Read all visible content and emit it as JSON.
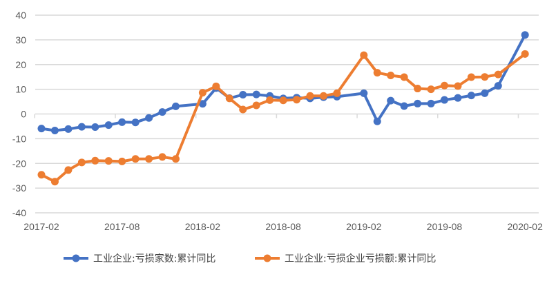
{
  "chart_data": {
    "type": "line",
    "title": "",
    "xlabel": "",
    "ylabel": "",
    "ylim": [
      -40,
      40
    ],
    "yticks": [
      40,
      30,
      20,
      10,
      0,
      -10,
      -20,
      -30,
      -40
    ],
    "yticklabels": [
      "40",
      "30",
      "20",
      "10",
      "0",
      "-10",
      "-20",
      "-30",
      "-40"
    ],
    "xticklabels": [
      "2017-02",
      "2017-08",
      "2018-02",
      "2018-08",
      "2019-02",
      "2019-08",
      "2020-02"
    ],
    "grid": true,
    "legend": "bottom",
    "x": [
      "2017-02",
      "2017-03",
      "2017-04",
      "2017-05",
      "2017-06",
      "2017-07",
      "2017-08",
      "2017-09",
      "2017-10",
      "2017-11",
      "2017-12",
      "2018-02",
      "2018-03",
      "2018-04",
      "2018-05",
      "2018-06",
      "2018-07",
      "2018-08",
      "2018-09",
      "2018-10",
      "2018-11",
      "2018-12",
      "2019-02",
      "2019-03",
      "2019-04",
      "2019-05",
      "2019-06",
      "2019-07",
      "2019-08",
      "2019-09",
      "2019-10",
      "2019-11",
      "2019-12",
      "2020-02"
    ],
    "series": [
      {
        "name": "工业企业:亏损家数:累计同比",
        "color": "#4472C4",
        "values": [
          -5.9,
          -6.7,
          -6.1,
          -5.2,
          -5.3,
          -4.5,
          -3.3,
          -3.4,
          -1.6,
          0.8,
          3.1,
          4.1,
          10.5,
          6.4,
          7.8,
          7.9,
          7.3,
          6.3,
          6.6,
          6.3,
          6.8,
          7.0,
          8.4,
          -3.0,
          5.4,
          3.2,
          4.2,
          4.2,
          5.7,
          6.5,
          7.5,
          8.4,
          11.4,
          32.0
        ]
      },
      {
        "name": "工业企业:亏损企业亏损额:累计同比",
        "color": "#ED7D31",
        "values": [
          -24.6,
          -27.4,
          -22.7,
          -19.6,
          -18.9,
          -19.0,
          -19.2,
          -18.2,
          -18.2,
          -17.4,
          -18.2,
          8.6,
          11.2,
          6.3,
          1.8,
          3.5,
          5.6,
          5.5,
          5.8,
          7.3,
          7.3,
          8.4,
          23.8,
          16.7,
          15.6,
          14.9,
          10.3,
          10.0,
          11.5,
          11.3,
          14.9,
          15.0,
          16.0,
          24.3
        ]
      }
    ]
  }
}
